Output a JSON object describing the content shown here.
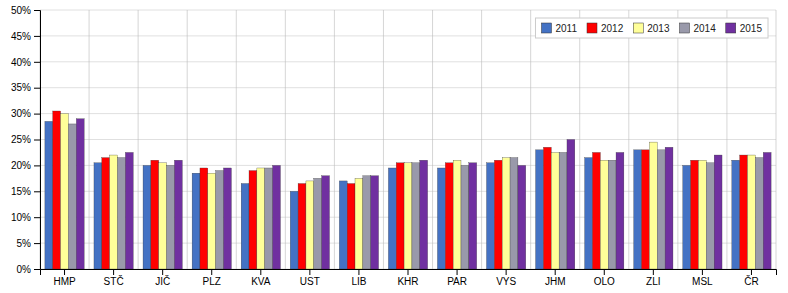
{
  "chart_data": {
    "type": "bar",
    "categories": [
      "HMP",
      "STČ",
      "JIČ",
      "PLZ",
      "KVA",
      "UST",
      "LIB",
      "KHR",
      "PAR",
      "VYS",
      "JHM",
      "OLO",
      "ZLI",
      "MSL",
      "ČR"
    ],
    "series": [
      {
        "name": "2011",
        "color": "#4472C4",
        "values": [
          28.5,
          20.5,
          20.0,
          18.5,
          16.5,
          15.0,
          17.0,
          19.5,
          19.5,
          20.5,
          23.0,
          21.5,
          23.0,
          20.0,
          21.0
        ]
      },
      {
        "name": "2012",
        "color": "#FF0000",
        "values": [
          30.5,
          21.5,
          21.0,
          19.5,
          19.0,
          16.5,
          16.5,
          20.5,
          20.5,
          21.0,
          23.5,
          22.5,
          23.0,
          21.0,
          22.0
        ]
      },
      {
        "name": "2013",
        "color": "#FFFF99",
        "values": [
          30.0,
          22.0,
          20.5,
          18.5,
          19.5,
          17.0,
          17.5,
          20.5,
          21.0,
          21.5,
          22.5,
          21.0,
          24.5,
          21.0,
          22.0
        ]
      },
      {
        "name": "2014",
        "color": "#9999AA",
        "values": [
          28.0,
          21.5,
          20.0,
          19.0,
          19.5,
          17.5,
          18.0,
          20.5,
          20.0,
          21.5,
          22.5,
          21.0,
          23.0,
          20.5,
          21.5
        ]
      },
      {
        "name": "2015",
        "color": "#7030A0",
        "values": [
          29.0,
          22.5,
          21.0,
          19.5,
          20.0,
          18.0,
          18.0,
          21.0,
          20.5,
          20.0,
          25.0,
          22.5,
          23.5,
          22.0,
          22.5
        ]
      }
    ],
    "ylim": [
      0,
      50
    ],
    "yticks": [
      {
        "value": 0,
        "label": "0%"
      },
      {
        "value": 5,
        "label": "5%"
      },
      {
        "value": 10,
        "label": "10%"
      },
      {
        "value": 15,
        "label": "15%"
      },
      {
        "value": 20,
        "label": "20%"
      },
      {
        "value": 25,
        "label": "25%"
      },
      {
        "value": 30,
        "label": "30%"
      },
      {
        "value": 35,
        "label": "35%"
      },
      {
        "value": 40,
        "label": "40%"
      },
      {
        "value": 45,
        "label": "45%"
      },
      {
        "value": 50,
        "label": "50%"
      }
    ],
    "grid": true,
    "legend": "upper right"
  }
}
